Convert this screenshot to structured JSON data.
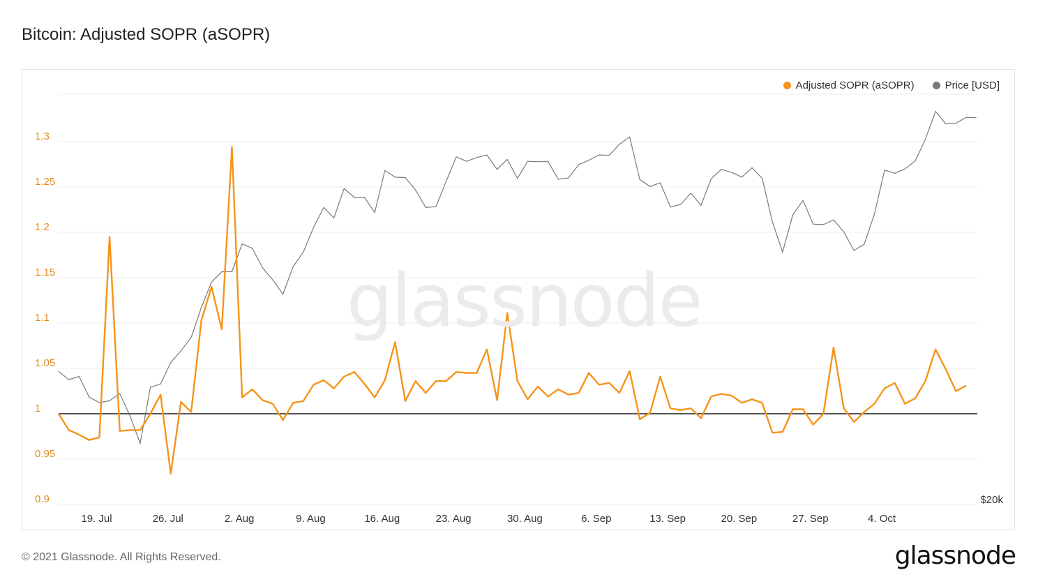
{
  "title": "Bitcoin: Adjusted SOPR (aSOPR)",
  "footer": {
    "copyright": "© 2021 Glassnode. All Rights Reserved.",
    "logo": "glassnode"
  },
  "watermark": "glassnode",
  "colors": {
    "asopr": "#f7931a",
    "price": "#7a7a7a",
    "baseline": "#555555",
    "grid": "#eeeeee"
  },
  "chart_data": {
    "type": "line",
    "title": "Bitcoin: Adjusted SOPR (aSOPR)",
    "xlabel": "",
    "ylabel": "",
    "x_start": "2021-07-15",
    "x_ticks": [
      "19. Jul",
      "26. Jul",
      "2. Aug",
      "9. Aug",
      "16. Aug",
      "23. Aug",
      "30. Aug",
      "6. Sep",
      "13. Sep",
      "20. Sep",
      "27. Sep",
      "4. Oct"
    ],
    "y_ticks": [
      "0.9",
      "0.95",
      "1",
      "1.05",
      "1.1",
      "1.15",
      "1.2",
      "1.25",
      "1.3"
    ],
    "ylim": [
      0.9,
      1.35
    ],
    "right_axis_label": "$20k",
    "baseline": 1,
    "legend": [
      "Adjusted SOPR (aSOPR)",
      "Price [USD]"
    ],
    "legend_position": "top-right",
    "grid": true,
    "series": [
      {
        "name": "Adjusted SOPR (aSOPR)",
        "axis": "left",
        "values": [
          1.0,
          0.982,
          0.977,
          0.971,
          0.974,
          1.195,
          0.981,
          0.982,
          0.982,
          1.0,
          1.021,
          0.934,
          1.013,
          1.002,
          1.103,
          1.14,
          1.093,
          1.294,
          1.018,
          1.027,
          1.015,
          1.011,
          0.993,
          1.012,
          1.014,
          1.032,
          1.037,
          1.028,
          1.041,
          1.046,
          1.033,
          1.018,
          1.037,
          1.079,
          1.014,
          1.036,
          1.023,
          1.036,
          1.036,
          1.046,
          1.045,
          1.045,
          1.071,
          1.015,
          1.111,
          1.036,
          1.016,
          1.03,
          1.019,
          1.027,
          1.021,
          1.023,
          1.045,
          1.032,
          1.034,
          1.023,
          1.047,
          0.994,
          1.001,
          1.041,
          1.006,
          1.004,
          1.006,
          0.995,
          1.019,
          1.022,
          1.02,
          1.012,
          1.016,
          1.012,
          0.979,
          0.98,
          1.005,
          1.005,
          0.988,
          1.0,
          1.073,
          1.006,
          0.991,
          1.002,
          1.011,
          1.028,
          1.034,
          1.011,
          1.017,
          1.036,
          1.071,
          1.049,
          1.025,
          1.031
        ]
      },
      {
        "name": "Price [USD]",
        "axis": "right",
        "values": [
          32800,
          31800,
          32200,
          29800,
          29200,
          29400,
          30200,
          27800,
          25100,
          30900,
          31300,
          33900,
          35400,
          37200,
          41600,
          45700,
          47500,
          47500,
          52700,
          51800,
          48200,
          46100,
          43700,
          48400,
          51100,
          56000,
          60300,
          58000,
          64700,
          62600,
          62600,
          59200,
          69200,
          67500,
          67400,
          64400,
          60300,
          60500,
          66400,
          72800,
          71600,
          72600,
          73300,
          69500,
          72100,
          67200,
          71600,
          71500,
          71500,
          67000,
          67300,
          70700,
          71900,
          73300,
          73200,
          76300,
          78400,
          66900,
          65200,
          66100,
          60400,
          61000,
          63600,
          60800,
          67100,
          69500,
          68700,
          67500,
          69900,
          67200,
          57200,
          51100,
          58700,
          61900,
          56700,
          56600,
          57600,
          55100,
          51400,
          52600,
          58800,
          69300,
          68500,
          69600,
          71700,
          77700,
          86200,
          82300,
          82500,
          84300,
          84200
        ]
      }
    ]
  }
}
